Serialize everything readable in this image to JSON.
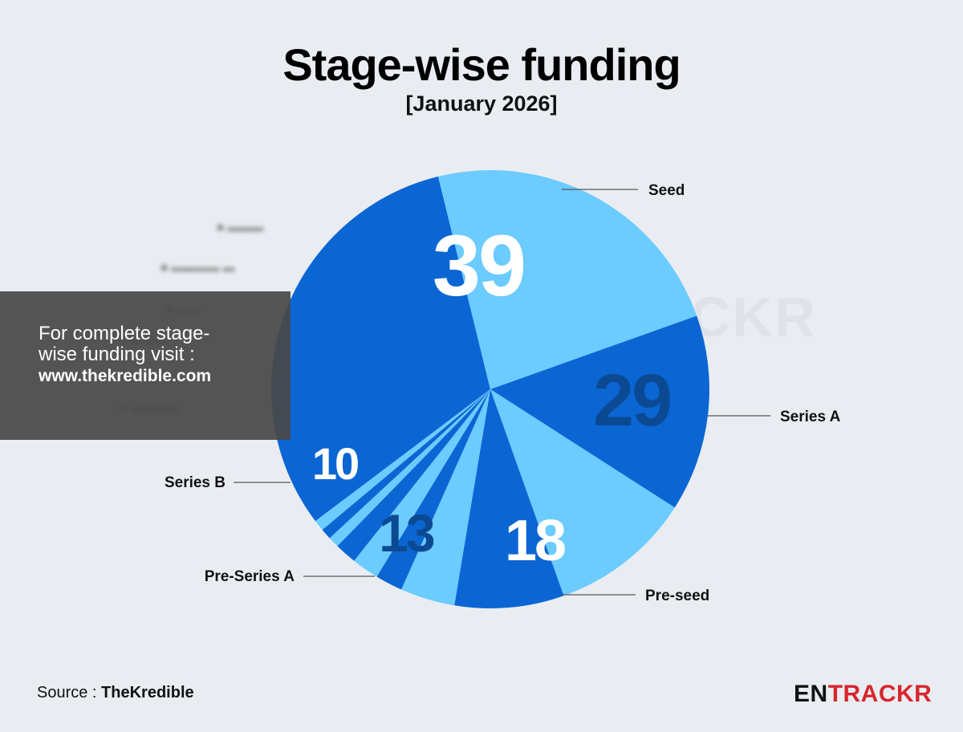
{
  "header": {
    "title": "Stage-wise funding",
    "subtitle": "[January 2026]"
  },
  "chart_data": {
    "type": "pie",
    "title": "Stage-wise funding",
    "subtitle": "[January 2026]",
    "slices": [
      {
        "label": "Seed",
        "value": 39,
        "color": "#0b66d4",
        "value_color": "#ffffff",
        "show_value": true
      },
      {
        "label": "Series A",
        "value": 29,
        "color": "#6ccbff",
        "value_color": "#0b4a93",
        "show_value": true
      },
      {
        "label": "Pre-seed",
        "value": 18,
        "color": "#0b66d4",
        "value_color": "#ffffff",
        "show_value": true
      },
      {
        "label": "Pre-Series A",
        "value": 13,
        "color": "#6ccbff",
        "value_color": "#0b4a93",
        "show_value": true
      },
      {
        "label": "Series B",
        "value": 10,
        "color": "#0b66d4",
        "value_color": "#ffffff",
        "show_value": true
      },
      {
        "label": "",
        "value": 5,
        "color": "#6ccbff",
        "show_value": false
      },
      {
        "label": "",
        "value": 2.5,
        "color": "#0b66d4",
        "show_value": false
      },
      {
        "label": "",
        "value": 2.5,
        "color": "#6ccbff",
        "show_value": false
      },
      {
        "label": "",
        "value": 2,
        "color": "#0b66d4",
        "show_value": false
      },
      {
        "label": "",
        "value": 1,
        "color": "#6ccbff",
        "show_value": false
      },
      {
        "label": "",
        "value": 1,
        "color": "#0b66d4",
        "show_value": false
      },
      {
        "label": "",
        "value": 1,
        "color": "#6ccbff",
        "show_value": false
      }
    ]
  },
  "overlay": {
    "text": "For complete stage-wise funding visit :",
    "url": "www.thekredible.com"
  },
  "footer": {
    "source_label": "Source : ",
    "source_name": "TheKredible",
    "logo_part1": "EN",
    "logo_part2": "TRACKR",
    "watermark": "CKR"
  }
}
